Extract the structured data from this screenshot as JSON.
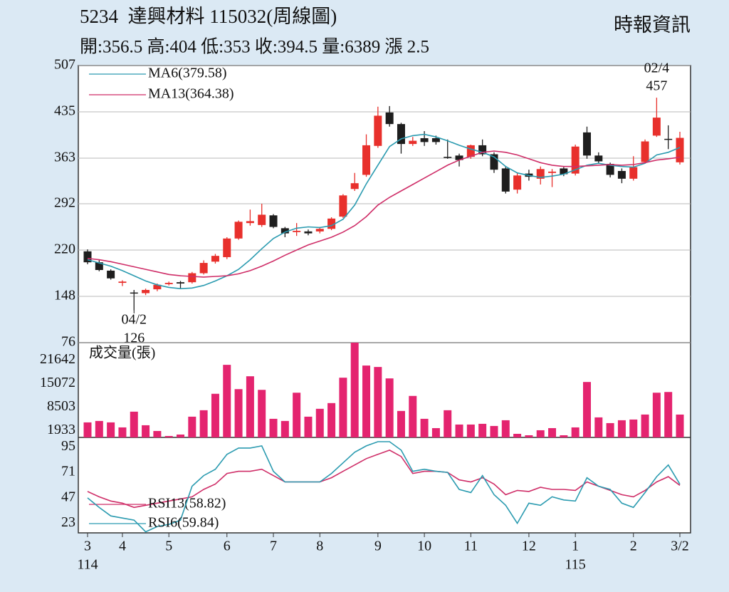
{
  "header": {
    "title": "5234  達興材料 115032(周線圖)",
    "source": "時報資訊",
    "info": "開:356.5 高:404 低:353 收:394.5 量:6389 漲 2.5"
  },
  "chart_data": [
    {
      "type": "candlestick",
      "categories": [
        "3",
        null,
        null,
        "4",
        null,
        null,
        null,
        "5",
        null,
        null,
        null,
        null,
        "6",
        null,
        null,
        null,
        "7",
        null,
        null,
        null,
        "8",
        null,
        null,
        null,
        null,
        "9",
        null,
        null,
        null,
        "10",
        null,
        null,
        null,
        "11",
        null,
        null,
        null,
        null,
        "12",
        null,
        null,
        null,
        "1",
        null,
        null,
        null,
        null,
        "2",
        null,
        null,
        null,
        "3/2"
      ],
      "year_labels": [
        "114",
        null,
        null,
        null,
        null,
        null,
        null,
        null,
        null,
        null,
        null,
        null,
        null,
        null,
        null,
        null,
        null,
        null,
        null,
        null,
        null,
        null,
        null,
        null,
        null,
        null,
        null,
        null,
        null,
        null,
        null,
        null,
        null,
        null,
        null,
        null,
        null,
        null,
        null,
        null,
        null,
        null,
        "115",
        null,
        null,
        null,
        null,
        null,
        null,
        null,
        null,
        null
      ],
      "ylim": [
        76,
        507
      ],
      "yticks": [
        76,
        148,
        220,
        292,
        363,
        435,
        507
      ],
      "grid": true,
      "up_color": "#e8302c",
      "down_color": "#1e1e1e",
      "open": [
        218,
        201,
        188,
        169,
        154,
        153,
        159,
        167,
        170,
        170,
        184,
        202,
        209,
        238,
        262,
        259,
        274,
        254,
        248,
        249,
        249,
        253,
        272,
        315,
        337,
        382,
        434,
        416,
        385,
        394,
        394,
        365,
        367,
        365,
        383,
        369,
        347,
        314,
        339,
        331,
        340,
        347,
        339,
        403,
        367,
        354,
        343,
        331,
        357,
        398,
        393,
        356.5
      ],
      "high": [
        221,
        204,
        190,
        173,
        158,
        160,
        168,
        171,
        172,
        186,
        204,
        214,
        240,
        266,
        283,
        292,
        276,
        256,
        262,
        252,
        256,
        271,
        307,
        340,
        400,
        443,
        444,
        418,
        396,
        405,
        398,
        392,
        370,
        384,
        392,
        372,
        350,
        340,
        345,
        350,
        346,
        349,
        384,
        412,
        372,
        356,
        347,
        366,
        392,
        457,
        414,
        404
      ],
      "low": [
        198,
        187,
        174,
        164,
        126,
        150,
        156,
        165,
        160,
        168,
        182,
        199,
        206,
        236,
        258,
        256,
        254,
        240,
        242,
        243,
        246,
        251,
        270,
        312,
        334,
        379,
        412,
        370,
        382,
        382,
        384,
        362,
        350,
        362,
        366,
        340,
        308,
        308,
        328,
        322,
        318,
        335,
        336,
        362,
        354,
        333,
        324,
        328,
        355,
        396,
        377,
        353
      ],
      "close": [
        201,
        189,
        176,
        171,
        153,
        158,
        166,
        169,
        168,
        184,
        200,
        211,
        238,
        264,
        265,
        275,
        256,
        246,
        250,
        246,
        253,
        269,
        305,
        324,
        383,
        429,
        416,
        385,
        390,
        388,
        388,
        364,
        360,
        383,
        369,
        345,
        311,
        336,
        334,
        346,
        342,
        338,
        381,
        367,
        358,
        337,
        331,
        349,
        389,
        426,
        392,
        394.5
      ],
      "low_label": {
        "date": "04/2",
        "value": 126
      },
      "high_label": {
        "date": "02/4",
        "value": 457
      },
      "series": [
        {
          "name": "MA6(379.58)",
          "color": "#2b9bb0",
          "values": [
            205,
            200,
            195,
            188,
            180,
            172,
            166,
            162,
            160,
            161,
            165,
            172,
            180,
            190,
            205,
            222,
            238,
            248,
            254,
            256,
            255,
            258,
            268,
            290,
            323,
            352,
            381,
            393,
            398,
            400,
            396,
            390,
            383,
            377,
            372,
            365,
            350,
            340,
            336,
            333,
            335,
            338,
            345,
            352,
            355,
            352,
            350,
            349,
            355,
            368,
            372,
            379.58
          ]
        },
        {
          "name": "MA13(364.38)",
          "color": "#cf2e68",
          "values": [
            207,
            205,
            202,
            198,
            194,
            190,
            186,
            182,
            180,
            179,
            178,
            179,
            180,
            183,
            188,
            195,
            203,
            212,
            220,
            228,
            234,
            240,
            248,
            258,
            272,
            290,
            302,
            312,
            322,
            332,
            342,
            352,
            360,
            366,
            372,
            374,
            372,
            368,
            362,
            356,
            352,
            350,
            350,
            351,
            352,
            353,
            352,
            353,
            356,
            360,
            362,
            364.38
          ]
        }
      ]
    },
    {
      "type": "bar",
      "title": "成交量(張)",
      "color": "#e4246f",
      "ylim": [
        0,
        26500
      ],
      "yticks": [
        1933,
        8503,
        15072,
        21642
      ],
      "values": [
        4200,
        4600,
        4200,
        2800,
        7200,
        3400,
        1800,
        400,
        800,
        5800,
        7600,
        12200,
        20300,
        13500,
        17100,
        13300,
        5200,
        4600,
        12500,
        5800,
        8000,
        9600,
        16700,
        26500,
        20100,
        19700,
        16500,
        7400,
        11600,
        5200,
        2600,
        7600,
        3600,
        3600,
        3800,
        3200,
        4800,
        1000,
        600,
        2000,
        2600,
        600,
        2800,
        15500,
        5600,
        4000,
        4800,
        5000,
        6400,
        12500,
        12700,
        6389
      ]
    },
    {
      "type": "line",
      "ylim": [
        14,
        104
      ],
      "yticks": [
        23,
        47,
        71,
        95
      ],
      "series": [
        {
          "name": "RSI13(58.82)",
          "color": "#cf2e68",
          "values": [
            53,
            48,
            44,
            42,
            38,
            40,
            42,
            44,
            46,
            48,
            55,
            60,
            70,
            72,
            72,
            74,
            68,
            62,
            62,
            62,
            62,
            66,
            72,
            78,
            84,
            88,
            92,
            86,
            70,
            72,
            72,
            71,
            64,
            62,
            66,
            60,
            50,
            54,
            53,
            57,
            55,
            55,
            54,
            62,
            58,
            54,
            50,
            48,
            54,
            62,
            67,
            58.82
          ]
        },
        {
          "name": "RSI6(59.84)",
          "color": "#2b9bb0",
          "values": [
            47,
            38,
            30,
            28,
            26,
            15,
            20,
            22,
            26,
            58,
            68,
            74,
            88,
            94,
            94,
            96,
            72,
            62,
            62,
            62,
            62,
            70,
            80,
            90,
            96,
            100,
            100,
            92,
            72,
            74,
            72,
            71,
            55,
            52,
            68,
            50,
            40,
            23,
            42,
            40,
            48,
            45,
            44,
            66,
            58,
            55,
            42,
            38,
            52,
            67,
            78,
            59.84
          ]
        }
      ]
    }
  ]
}
